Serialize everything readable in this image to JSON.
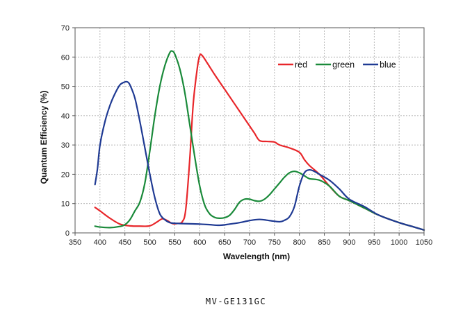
{
  "caption": "MV-GE131GC",
  "chart_data": {
    "type": "line",
    "title": "",
    "xlabel": "Wavelength (nm)",
    "ylabel": "Quantum Efficiency (%)",
    "xlim": [
      350,
      1050
    ],
    "ylim": [
      0,
      70
    ],
    "xticks": [
      350,
      400,
      450,
      500,
      550,
      600,
      650,
      700,
      750,
      800,
      850,
      900,
      950,
      1000,
      1050
    ],
    "yticks": [
      0,
      10,
      20,
      30,
      40,
      50,
      60,
      70
    ],
    "grid": true,
    "legend": "top-right, inside plot",
    "series": [
      {
        "name": "red",
        "color": "#e8262a",
        "x": [
          390,
          400,
          420,
          440,
          460,
          480,
          500,
          515,
          525,
          535,
          545,
          555,
          565,
          572,
          580,
          587,
          595,
          600,
          605,
          615,
          630,
          650,
          670,
          690,
          700,
          710,
          720,
          735,
          750,
          760,
          780,
          800,
          810,
          820,
          840,
          860,
          880,
          900,
          930,
          960,
          1000,
          1030,
          1050
        ],
        "y": [
          8.7,
          7.5,
          5,
          3,
          2.4,
          2.3,
          2.4,
          3.8,
          4.8,
          4.2,
          3.2,
          3.2,
          3.8,
          8,
          25,
          44,
          56,
          60.5,
          60.5,
          58,
          54,
          49,
          44,
          39,
          36.5,
          34,
          31.5,
          31.2,
          31,
          30,
          29,
          27.5,
          25,
          23,
          20,
          16,
          12.5,
          11,
          8.5,
          6,
          3.5,
          2,
          1
        ]
      },
      {
        "name": "green",
        "color": "#1a8a3a",
        "x": [
          390,
          400,
          420,
          440,
          450,
          460,
          470,
          480,
          490,
          500,
          510,
          520,
          530,
          540,
          545,
          550,
          560,
          570,
          580,
          590,
          600,
          610,
          620,
          630,
          640,
          650,
          660,
          670,
          680,
          690,
          700,
          710,
          720,
          730,
          740,
          750,
          760,
          770,
          780,
          790,
          800,
          810,
          820,
          840,
          860,
          880,
          900,
          930,
          960,
          1000,
          1030,
          1050
        ],
        "y": [
          2.3,
          2,
          1.8,
          2.2,
          2.8,
          4.5,
          7.5,
          10.5,
          17,
          28,
          40,
          50,
          57,
          61.5,
          62,
          61,
          56,
          48,
          37,
          26,
          16,
          9.5,
          6.5,
          5.3,
          5,
          5.2,
          6,
          8,
          10.5,
          11.5,
          11.5,
          11,
          10.8,
          11.5,
          13,
          15,
          17,
          19,
          20.5,
          21,
          20.5,
          19.5,
          18.5,
          18,
          16,
          12.5,
          11,
          8.5,
          6,
          3.5,
          2,
          1
        ]
      },
      {
        "name": "blue",
        "color": "#1f3a93",
        "x": [
          390,
          395,
          400,
          410,
          420,
          430,
          440,
          450,
          455,
          460,
          470,
          480,
          490,
          500,
          510,
          520,
          530,
          540,
          550,
          560,
          580,
          600,
          620,
          640,
          660,
          680,
          700,
          720,
          740,
          760,
          770,
          780,
          790,
          800,
          810,
          820,
          830,
          840,
          860,
          880,
          900,
          930,
          960,
          1000,
          1030,
          1050
        ],
        "y": [
          16.5,
          22,
          30,
          38,
          43.5,
          47.5,
          50.5,
          51.5,
          51.5,
          50.5,
          46,
          38,
          29,
          20,
          12,
          6.5,
          4.5,
          3.5,
          3.3,
          3.2,
          3.1,
          3,
          2.8,
          2.6,
          3,
          3.5,
          4.2,
          4.6,
          4.2,
          3.8,
          4.3,
          5.5,
          9,
          16,
          20.5,
          21.5,
          21,
          20,
          18,
          15,
          11.5,
          9,
          6,
          3.5,
          2,
          1
        ]
      }
    ]
  }
}
